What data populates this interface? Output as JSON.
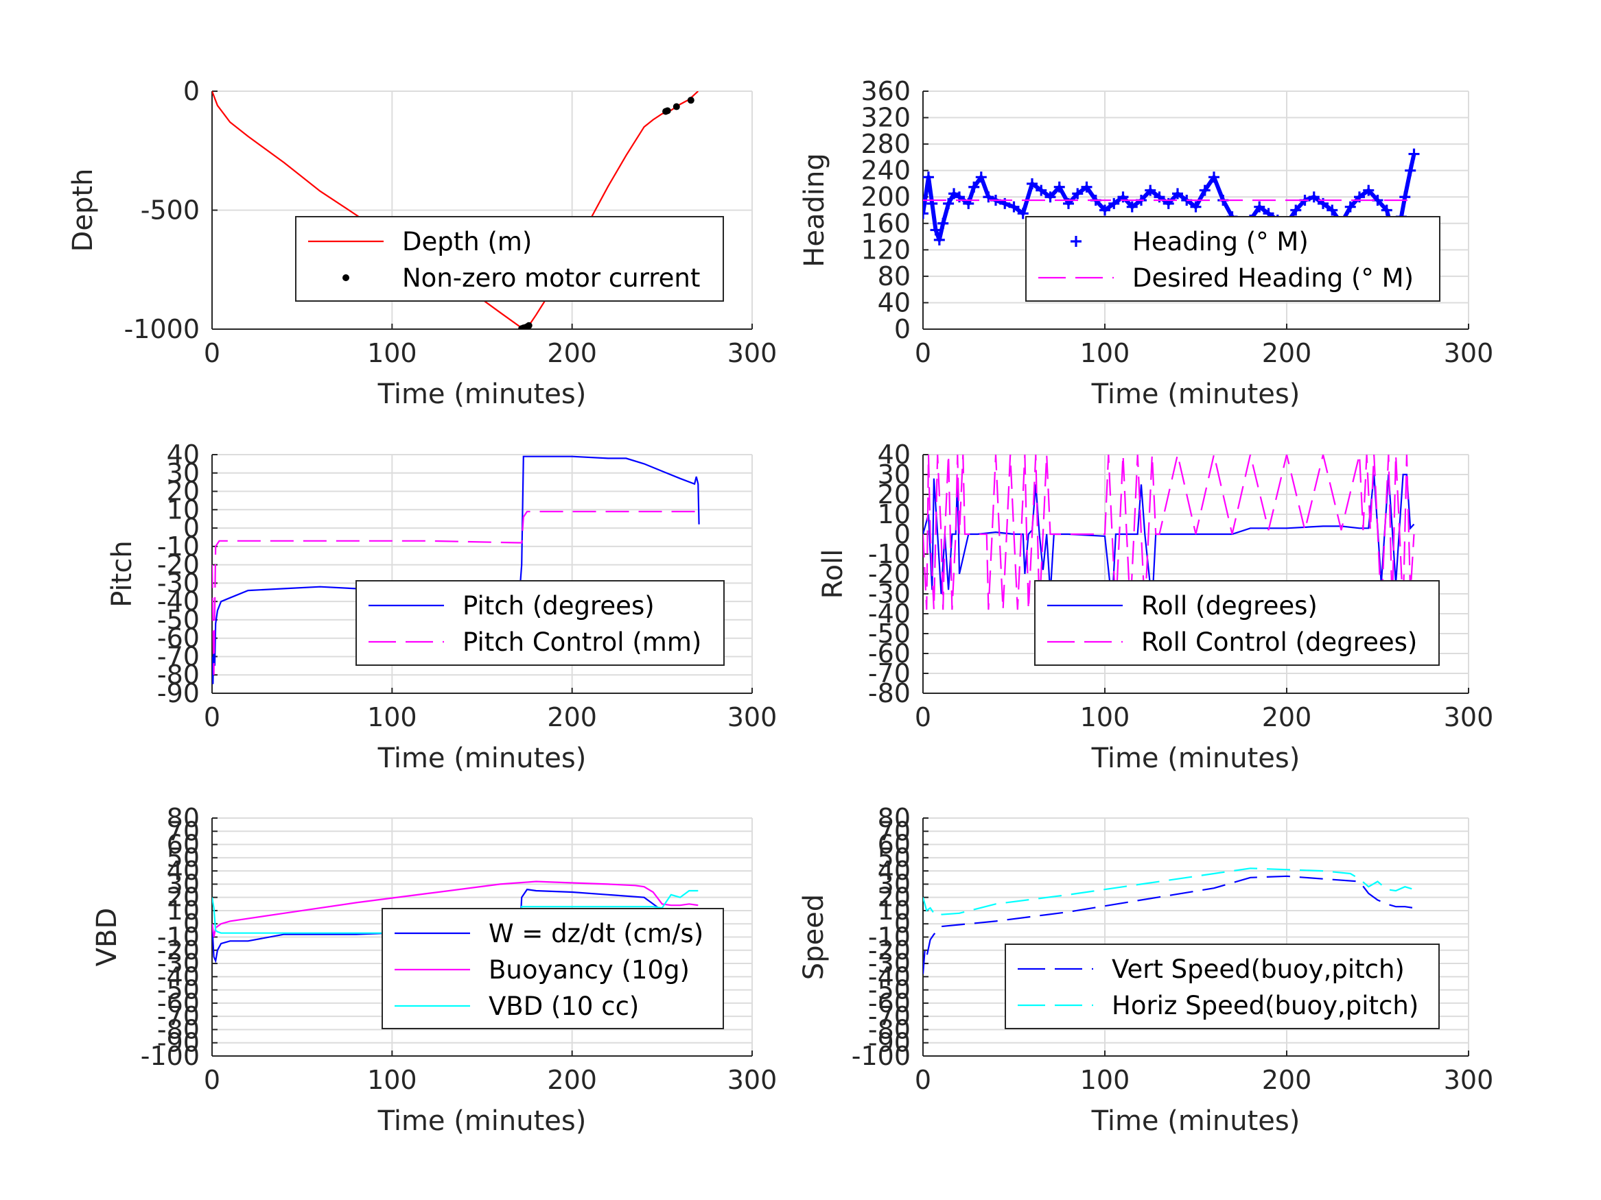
{
  "chart_data": [
    {
      "type": "line",
      "xlabel": "Time (minutes)",
      "ylabel": "Depth",
      "xlim": [
        0,
        300
      ],
      "ylim": [
        -1000,
        0
      ],
      "xticks": [
        "0",
        "100",
        "200",
        "300"
      ],
      "yticks": [
        "0",
        "-500",
        "-1000"
      ],
      "yticks_values": [
        0,
        -500,
        -1000
      ],
      "grid": true,
      "legend_placement": "center-right",
      "series": [
        {
          "name": "Depth (m)",
          "style": "line",
          "color": "#ff0000",
          "x": [
            0,
            3,
            10,
            20,
            40,
            60,
            80,
            100,
            120,
            140,
            160,
            172,
            176,
            180,
            190,
            200,
            210,
            220,
            230,
            240,
            245,
            250,
            255,
            260,
            265,
            270
          ],
          "y": [
            0,
            -60,
            -130,
            -190,
            -300,
            -420,
            -520,
            -620,
            -720,
            -820,
            -930,
            -995,
            -985,
            -940,
            -820,
            -690,
            -540,
            -400,
            -270,
            -150,
            -120,
            -95,
            -80,
            -55,
            -35,
            0
          ]
        },
        {
          "name": "Non-zero motor current",
          "style": "dot",
          "color": "#000000",
          "x": [
            172,
            173,
            174,
            175,
            176,
            252,
            253,
            258,
            266
          ],
          "y": [
            -998,
            -995,
            -993,
            -990,
            -985,
            -85,
            -82,
            -65,
            -38
          ]
        }
      ]
    },
    {
      "type": "line",
      "xlabel": "Time (minutes)",
      "ylabel": "Heading",
      "xlim": [
        0,
        300
      ],
      "ylim": [
        0,
        360
      ],
      "xticks": [
        "0",
        "100",
        "200",
        "300"
      ],
      "yticks": [
        "0",
        "40",
        "80",
        "120",
        "160",
        "200",
        "240",
        "280",
        "320",
        "360"
      ],
      "yticks_values": [
        0,
        40,
        80,
        120,
        160,
        200,
        240,
        280,
        320,
        360
      ],
      "grid": true,
      "legend_placement": "center-right",
      "series": [
        {
          "name": "Heading (° M)",
          "style": "plus",
          "color": "#0000ff",
          "x": [
            0,
            3,
            5,
            7,
            9,
            11,
            14,
            17,
            20,
            25,
            28,
            32,
            36,
            40,
            45,
            50,
            55,
            60,
            65,
            70,
            75,
            80,
            85,
            90,
            95,
            100,
            105,
            110,
            115,
            120,
            125,
            130,
            135,
            140,
            145,
            150,
            155,
            160,
            165,
            170,
            175,
            180,
            185,
            190,
            195,
            200,
            205,
            210,
            215,
            220,
            225,
            230,
            235,
            240,
            245,
            250,
            255,
            257,
            259,
            261,
            263,
            265,
            268,
            270
          ],
          "y": [
            175,
            230,
            190,
            150,
            135,
            160,
            190,
            205,
            200,
            190,
            215,
            230,
            200,
            195,
            190,
            185,
            175,
            220,
            210,
            200,
            215,
            190,
            205,
            215,
            195,
            180,
            190,
            200,
            185,
            195,
            210,
            200,
            190,
            205,
            195,
            185,
            210,
            230,
            195,
            170,
            150,
            165,
            185,
            175,
            165,
            160,
            180,
            195,
            200,
            190,
            180,
            160,
            185,
            200,
            210,
            195,
            180,
            160,
            100,
            125,
            170,
            200,
            240,
            265
          ]
        },
        {
          "name": "Desired Heading (° M)",
          "style": "dash",
          "color": "#ff00ff",
          "x": [
            0,
            270
          ],
          "y": [
            195,
            195
          ]
        }
      ]
    },
    {
      "type": "line",
      "xlabel": "Time (minutes)",
      "ylabel": "Pitch",
      "xlim": [
        0,
        300
      ],
      "ylim": [
        -90,
        40
      ],
      "xticks": [
        "0",
        "100",
        "200",
        "300"
      ],
      "yticks": [
        "40",
        "30",
        "20",
        "10",
        "0",
        "-10",
        "-20",
        "-30",
        "-40",
        "-50",
        "-60",
        "-70",
        "-80",
        "-90"
      ],
      "yticks_values": [
        40,
        30,
        20,
        10,
        0,
        -10,
        -20,
        -30,
        -40,
        -50,
        -60,
        -70,
        -80,
        -90
      ],
      "grid": true,
      "legend_placement": "lower-right",
      "series": [
        {
          "name": "Pitch (degrees)",
          "style": "line",
          "color": "#0000ff",
          "x": [
            0,
            0.5,
            1,
            1.5,
            2,
            3,
            5,
            10,
            20,
            40,
            60,
            80,
            100,
            120,
            140,
            160,
            171,
            172,
            173,
            180,
            200,
            220,
            230,
            240,
            250,
            260,
            268,
            269,
            270,
            270.5
          ],
          "y": [
            -70,
            -85,
            -60,
            -75,
            -52,
            -45,
            -40,
            -38,
            -34,
            -33,
            -32,
            -33,
            -32,
            -32,
            -33,
            -33,
            -33,
            -20,
            39,
            39,
            39,
            38,
            38,
            35,
            31,
            27,
            24,
            28,
            24,
            2
          ]
        },
        {
          "name": "Pitch Control (mm)",
          "style": "dash",
          "color": "#ff00ff",
          "x": [
            0,
            1,
            2,
            4,
            10,
            60,
            120,
            170,
            172,
            173,
            175,
            270
          ],
          "y": [
            -20,
            -80,
            -10,
            -7,
            -7,
            -7,
            -7,
            -8,
            -8,
            6,
            9,
            9
          ]
        }
      ]
    },
    {
      "type": "line",
      "xlabel": "Time (minutes)",
      "ylabel": "Roll",
      "xlim": [
        0,
        300
      ],
      "ylim": [
        -80,
        40
      ],
      "xticks": [
        "0",
        "100",
        "200",
        "300"
      ],
      "yticks": [
        "40",
        "30",
        "20",
        "10",
        "0",
        "-10",
        "-20",
        "-30",
        "-40",
        "-50",
        "-60",
        "-70",
        "-80"
      ],
      "yticks_values": [
        40,
        30,
        20,
        10,
        0,
        -10,
        -20,
        -30,
        -40,
        -50,
        -60,
        -70,
        -80
      ],
      "grid": true,
      "legend_placement": "lower-right",
      "series": [
        {
          "name": "Roll (degrees)",
          "style": "line",
          "color": "#0000ff",
          "x": [
            0,
            3,
            5,
            6,
            8,
            10,
            12,
            14,
            16,
            18,
            19,
            20,
            25,
            30,
            40,
            50,
            55,
            56,
            58,
            60,
            62,
            64,
            66,
            68,
            70,
            72,
            75,
            80,
            100,
            104,
            106,
            108,
            110,
            118,
            120,
            122,
            126,
            128,
            130,
            150,
            170,
            180,
            200,
            220,
            230,
            240,
            245,
            248,
            250,
            252,
            254,
            256,
            258,
            260,
            262,
            264,
            266,
            268,
            270
          ],
          "y": [
            0,
            10,
            -28,
            28,
            0,
            -30,
            0,
            -28,
            0,
            0,
            28,
            -20,
            0,
            0,
            1,
            0,
            0,
            -20,
            0,
            2,
            25,
            0,
            -18,
            0,
            -30,
            0,
            0,
            0,
            -1,
            -35,
            0,
            0,
            0,
            0,
            25,
            0,
            -35,
            0,
            0,
            0,
            0,
            3,
            3,
            4,
            4,
            3,
            3,
            30,
            3,
            -25,
            3,
            30,
            3,
            -25,
            3,
            30,
            30,
            3,
            5
          ]
        },
        {
          "name": "Roll Control (degrees)",
          "style": "dash",
          "color": "#ff00ff",
          "x": [
            0,
            2,
            3,
            4,
            6,
            7,
            8,
            10,
            11,
            12,
            14,
            15,
            16,
            18,
            19,
            20,
            22,
            23,
            25,
            35,
            36,
            38,
            40,
            42,
            44,
            46,
            48,
            50,
            52,
            54,
            56,
            57,
            58,
            60,
            62,
            63,
            64,
            66,
            68,
            70,
            72,
            100,
            102,
            104,
            106,
            108,
            110,
            112,
            114,
            116,
            118,
            120,
            122,
            124,
            126,
            128,
            130,
            140,
            150,
            160,
            170,
            180,
            190,
            200,
            210,
            220,
            230,
            240,
            242,
            244,
            246,
            248,
            250,
            252,
            254,
            256,
            258,
            260,
            262,
            264,
            266,
            268,
            270
          ],
          "y": [
            0,
            -38,
            40,
            0,
            -38,
            0,
            40,
            0,
            -38,
            0,
            40,
            0,
            -38,
            0,
            40,
            0,
            40,
            0,
            0,
            0,
            -38,
            0,
            40,
            0,
            -38,
            0,
            40,
            0,
            -38,
            0,
            40,
            0,
            -38,
            0,
            40,
            0,
            -38,
            0,
            40,
            0,
            0,
            0,
            40,
            0,
            -38,
            0,
            40,
            0,
            -38,
            0,
            40,
            0,
            -38,
            0,
            40,
            0,
            0,
            40,
            0,
            40,
            0,
            40,
            2,
            40,
            2,
            40,
            2,
            40,
            2,
            40,
            2,
            40,
            2,
            -38,
            2,
            40,
            -38,
            40,
            2,
            -38,
            40,
            -30,
            0
          ]
        }
      ]
    },
    {
      "type": "line",
      "xlabel": "Time (minutes)",
      "ylabel": "VBD",
      "xlim": [
        0,
        300
      ],
      "ylim": [
        -100,
        80
      ],
      "xticks": [
        "0",
        "100",
        "200",
        "300"
      ],
      "yticks": [
        "80",
        "70",
        "60",
        "50",
        "40",
        "30",
        "20",
        "10",
        "0",
        "-10",
        "-20",
        "-30",
        "-40",
        "-50",
        "-60",
        "-70",
        "-80",
        "-90",
        "-100"
      ],
      "yticks_values": [
        80,
        70,
        60,
        50,
        40,
        30,
        20,
        10,
        0,
        -10,
        -20,
        -30,
        -40,
        -50,
        -60,
        -70,
        -80,
        -90,
        -100
      ],
      "grid": true,
      "legend_placement": "lower-right",
      "series": [
        {
          "name": "W = dz/dt (cm/s)",
          "style": "line",
          "color": "#0000ff",
          "x": [
            0,
            1,
            2,
            3,
            5,
            10,
            20,
            40,
            60,
            80,
            100,
            120,
            140,
            160,
            171,
            172,
            175,
            180,
            200,
            220,
            240,
            245,
            250,
            255,
            260,
            265,
            268,
            270
          ],
          "y": [
            0,
            -25,
            -28,
            -20,
            -15,
            -13,
            -13,
            -8,
            -8,
            -8,
            -7,
            -7,
            -7,
            -7,
            -7,
            20,
            26,
            25,
            24,
            22,
            20,
            15,
            10,
            8,
            6,
            5,
            5,
            3
          ]
        },
        {
          "name": "Buoyancy (10g)",
          "style": "line",
          "color": "#ff00ff",
          "x": [
            0,
            1,
            2,
            5,
            10,
            40,
            80,
            120,
            160,
            180,
            200,
            220,
            235,
            240,
            245,
            250,
            255,
            260,
            265,
            270
          ],
          "y": [
            0,
            -10,
            -3,
            0,
            2,
            8,
            16,
            23,
            30,
            32,
            31,
            30,
            29,
            28,
            24,
            15,
            14,
            14,
            15,
            14
          ]
        },
        {
          "name": "VBD (10 cc)",
          "style": "line",
          "color": "#00ffff",
          "x": [
            0,
            1,
            2,
            3,
            5,
            170,
            171,
            172,
            245,
            250,
            255,
            260,
            265,
            270
          ],
          "y": [
            20,
            12,
            -5,
            -6,
            -7,
            -7,
            -7,
            13,
            13,
            12,
            22,
            20,
            25,
            25
          ]
        }
      ]
    },
    {
      "type": "line",
      "xlabel": "Time (minutes)",
      "ylabel": "Speed",
      "xlim": [
        0,
        300
      ],
      "ylim": [
        -100,
        80
      ],
      "xticks": [
        "0",
        "100",
        "200",
        "300"
      ],
      "yticks": [
        "80",
        "70",
        "60",
        "50",
        "40",
        "30",
        "20",
        "10",
        "0",
        "-10",
        "-20",
        "-30",
        "-40",
        "-50",
        "-60",
        "-70",
        "-80",
        "-90",
        "-100"
      ],
      "yticks_values": [
        80,
        70,
        60,
        50,
        40,
        30,
        20,
        10,
        0,
        -10,
        -20,
        -30,
        -40,
        -50,
        -60,
        -70,
        -80,
        -90,
        -100
      ],
      "grid": true,
      "legend_placement": "lower-right",
      "series": [
        {
          "name": "Vert Speed(buoy,pitch)",
          "style": "dash",
          "color": "#0000ff",
          "x": [
            0,
            1,
            2,
            4,
            6,
            8,
            10,
            40,
            80,
            120,
            160,
            180,
            200,
            220,
            240,
            245,
            250,
            255,
            260,
            265,
            270
          ],
          "y": [
            -38,
            -20,
            -25,
            -12,
            -8,
            -5,
            -2,
            2,
            9,
            18,
            27,
            35,
            36,
            34,
            32,
            23,
            18,
            15,
            13,
            13,
            12
          ]
        },
        {
          "name": "Horiz Speed(buoy,pitch)",
          "style": "dash",
          "color": "#00ffff",
          "x": [
            0,
            2,
            4,
            6,
            8,
            10,
            20,
            40,
            80,
            120,
            160,
            180,
            200,
            220,
            235,
            240,
            245,
            250,
            255,
            260,
            265,
            270
          ],
          "y": [
            20,
            10,
            12,
            8,
            6,
            7,
            8,
            15,
            22,
            30,
            38,
            42,
            41,
            40,
            38,
            34,
            28,
            32,
            26,
            25,
            28,
            26
          ]
        }
      ]
    }
  ]
}
